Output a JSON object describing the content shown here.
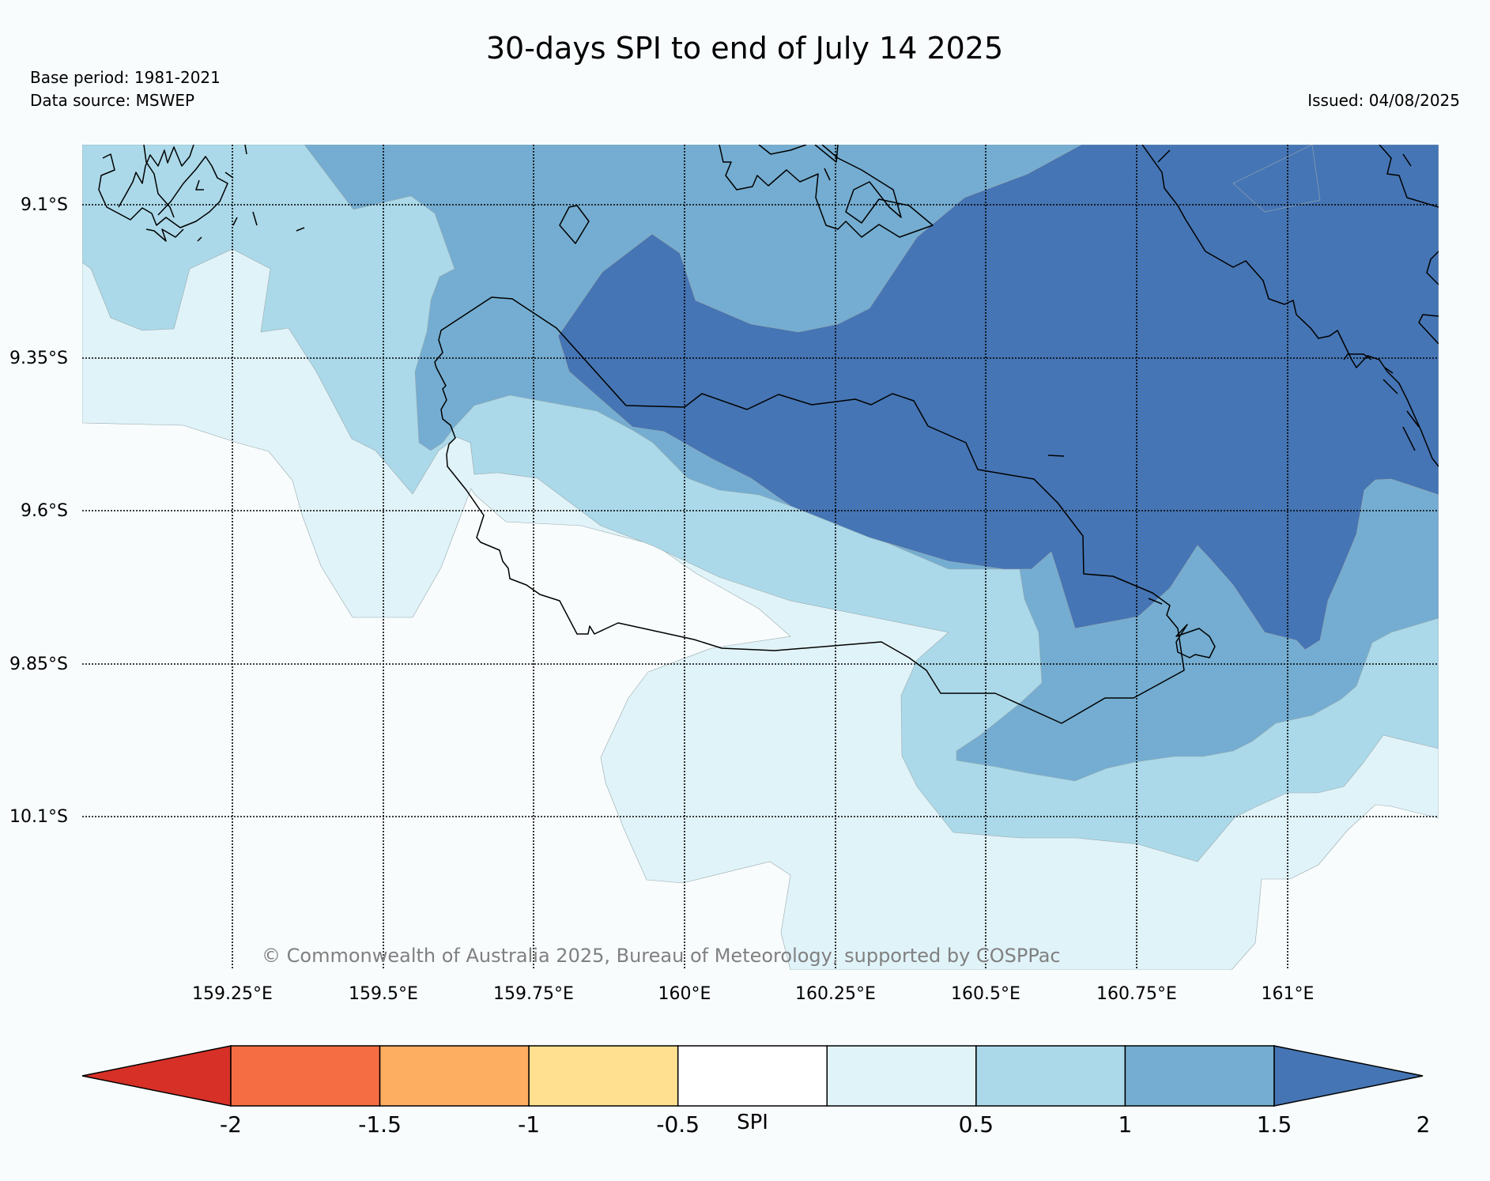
{
  "title": "30-days SPI to end of July 14 2025",
  "base_period": "Base period: 1981-2021",
  "data_source": "Data source: MSWEP",
  "issued": "Issued: 04/08/2025",
  "copyright": "© Commonwealth of Australia 2025, Bureau of Meteorology, supported by COSPPac",
  "lat_labels": [
    "9.1°S",
    "9.35°S",
    "9.6°S",
    "9.85°S",
    "10.1°S"
  ],
  "lon_labels": [
    "159.25°E",
    "159.5°E",
    "159.75°E",
    "160°E",
    "160.25°E",
    "160.5°E",
    "160.75°E",
    "161°E"
  ],
  "colorbar": {
    "label": "SPI",
    "ticks": [
      "-2",
      "-1.5",
      "-1",
      "-0.5",
      "0.5",
      "1",
      "1.5",
      "2"
    ],
    "colors": [
      "#d73027",
      "#f46d43",
      "#fdae61",
      "#fee090",
      "#ffffff",
      "#e0f3f8",
      "#abd9e9",
      "#74add1",
      "#4575b4"
    ]
  },
  "spi_classes": {
    "0.5_to_1": "#e0f3f8",
    "1_to_1.5": "#abd9e9",
    "1.5_to_2": "#74add1",
    "above_2": "#4575b4",
    "near_normal": "#f8fcfd"
  }
}
